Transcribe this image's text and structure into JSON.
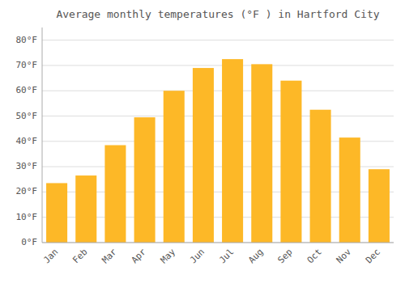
{
  "chart_data": {
    "type": "bar",
    "title": "Average monthly temperatures (°F ) in Hartford City",
    "categories": [
      "Jan",
      "Feb",
      "Mar",
      "Apr",
      "May",
      "Jun",
      "Jul",
      "Aug",
      "Sep",
      "Oct",
      "Nov",
      "Dec"
    ],
    "values": [
      23.5,
      26.5,
      38.5,
      49.5,
      60.0,
      69.0,
      72.5,
      70.5,
      64.0,
      52.5,
      41.5,
      29.0
    ],
    "color": "#FDB827",
    "ylim": [
      0,
      85
    ],
    "yticks": [
      {
        "value": 0,
        "label": "0°F"
      },
      {
        "value": 10,
        "label": "10°F"
      },
      {
        "value": 20,
        "label": "20°F"
      },
      {
        "value": 30,
        "label": "30°F"
      },
      {
        "value": 40,
        "label": "40°F"
      },
      {
        "value": 50,
        "label": "50°F"
      },
      {
        "value": 60,
        "label": "60°F"
      },
      {
        "value": 70,
        "label": "70°F"
      },
      {
        "value": 80,
        "label": "80°F"
      }
    ],
    "grid": true
  }
}
